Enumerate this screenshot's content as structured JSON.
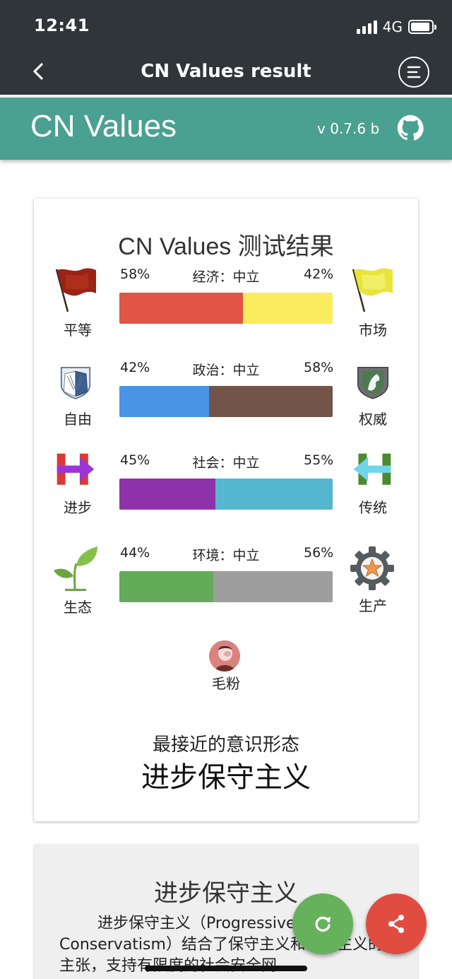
{
  "status": {
    "time": "12:41",
    "network": "4G"
  },
  "nav": {
    "title": "CN Values result"
  },
  "app": {
    "title": "CN Values",
    "version": "v 0.7.6 b"
  },
  "result": {
    "title": "CN Values 测试结果",
    "axes": [
      {
        "name": "经济：中立",
        "left_label": "平等",
        "right_label": "市场",
        "left_pct": "58%",
        "right_pct": "42%",
        "left_value": 58,
        "right_value": 42,
        "left_color": "#e05543",
        "right_color": "#fbec5d",
        "left_icon": "red-flag-icon",
        "right_icon": "yellow-flag-icon"
      },
      {
        "name": "政治：中立",
        "left_label": "自由",
        "right_label": "权威",
        "left_pct": "42%",
        "right_pct": "58%",
        "left_value": 42,
        "right_value": 58,
        "left_color": "#4a94e6",
        "right_color": "#725449",
        "left_icon": "wings-emblem-icon",
        "right_icon": "horse-shield-icon"
      },
      {
        "name": "社会：中立",
        "left_label": "进步",
        "right_label": "传统",
        "left_pct": "45%",
        "right_pct": "55%",
        "left_value": 45,
        "right_value": 55,
        "left_color": "#8e32aa",
        "right_color": "#55b6cf",
        "left_icon": "h-arrow-right-icon",
        "right_icon": "h-arrow-left-icon"
      },
      {
        "name": "环境：中立",
        "left_label": "生态",
        "right_label": "生产",
        "left_pct": "44%",
        "right_pct": "56%",
        "left_value": 44,
        "right_value": 56,
        "left_color": "#63ab58",
        "right_color": "#9e9e9e",
        "left_icon": "sprout-icon",
        "right_icon": "gear-star-icon"
      }
    ],
    "ideology_icon_label": "毛粉",
    "closest_label": "最接近的意识形态",
    "closest_value": "进步保守主义"
  },
  "description": {
    "title": "进步保守主义",
    "text": "进步保守主义（Progressive Conservatism）结合了保守主义和进步主义的主张，支持有限度的社会安全网"
  },
  "fabs": {
    "refresh_icon": "refresh-icon",
    "share_icon": "share-icon"
  }
}
